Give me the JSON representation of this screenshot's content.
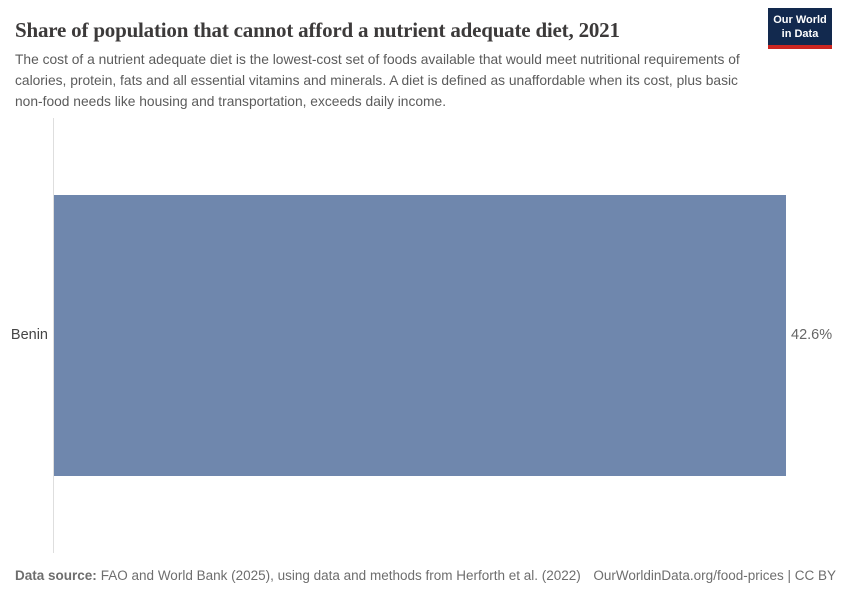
{
  "header": {
    "title": "Share of population that cannot afford a nutrient adequate diet, 2021",
    "subtitle": "The cost of a nutrient adequate diet is the lowest-cost set of foods available that would meet nutritional requirements of calories, protein, fats and all essential vitamins and minerals. A diet is defined as unaffordable when its cost, plus basic non-food needs like housing and transportation, exceeds daily income.",
    "logo": {
      "line1": "Our World",
      "line2": "in Data",
      "bg_color": "#12294e",
      "underline_color": "#cc2621"
    }
  },
  "chart_data": {
    "type": "bar",
    "orientation": "horizontal",
    "title": "Share of population that cannot afford a nutrient adequate diet, 2021",
    "categories": [
      "Benin"
    ],
    "values": [
      42.6
    ],
    "value_labels": [
      "42.6%"
    ],
    "unit": "%",
    "xlabel": "",
    "ylabel": "",
    "xlim": [
      0,
      42.6
    ],
    "grid": false,
    "legend": false,
    "bar_color": "#6f87ad",
    "axis_line_color": "#dedede"
  },
  "footer": {
    "source_label": "Data source:",
    "source_text": "FAO and World Bank (2025), using data and methods from Herforth et al. (2022)",
    "attribution": "OurWorldinData.org/food-prices | CC BY"
  }
}
